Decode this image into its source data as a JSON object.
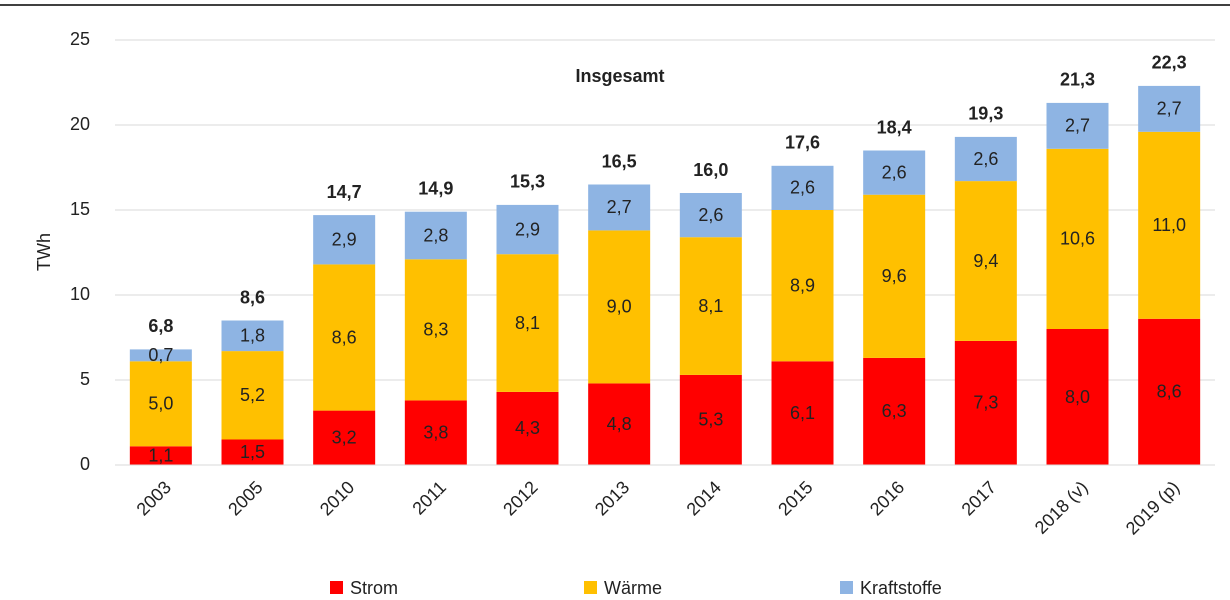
{
  "chart_data": {
    "type": "stacked_bar",
    "y_label": "TWh",
    "annotation": "Insgesamt",
    "categories": [
      "2003",
      "2005",
      "2010",
      "2011",
      "2012",
      "2013",
      "2014",
      "2015",
      "2016",
      "2017",
      "2018 (v)",
      "2019 (p)"
    ],
    "series": [
      {
        "name": "Strom",
        "color": "#ff0000",
        "values": [
          1.1,
          1.5,
          3.2,
          3.8,
          4.3,
          4.8,
          5.3,
          6.1,
          6.3,
          7.3,
          8.0,
          8.6
        ],
        "value_labels": [
          "1,1",
          "1,5",
          "3,2",
          "3,8",
          "4,3",
          "4,8",
          "5,3",
          "6,1",
          "6,3",
          "7,3",
          "8,0",
          "8,6"
        ]
      },
      {
        "name": "Wärme",
        "color": "#ffc000",
        "values": [
          5.0,
          5.2,
          8.6,
          8.3,
          8.1,
          9.0,
          8.1,
          8.9,
          9.6,
          9.4,
          10.6,
          11.0
        ],
        "value_labels": [
          "5,0",
          "5,2",
          "8,6",
          "8,3",
          "8,1",
          "9,0",
          "8,1",
          "8,9",
          "9,6",
          "9,4",
          "10,6",
          "11,0"
        ]
      },
      {
        "name": "Kraftstoffe",
        "color": "#8eb4e3",
        "values": [
          0.7,
          1.8,
          2.9,
          2.8,
          2.9,
          2.7,
          2.6,
          2.6,
          2.6,
          2.6,
          2.7,
          2.7
        ],
        "value_labels": [
          "0,7",
          "1,8",
          "2,9",
          "2,8",
          "2,9",
          "2,7",
          "2,6",
          "2,6",
          "2,6",
          "2,6",
          "2,7",
          "2,7"
        ]
      }
    ],
    "totals": {
      "values": [
        6.8,
        8.6,
        14.7,
        14.9,
        15.3,
        16.5,
        16.0,
        17.6,
        18.4,
        19.3,
        21.3,
        22.3
      ],
      "value_labels": [
        "6,8",
        "8,6",
        "14,7",
        "14,9",
        "15,3",
        "16,5",
        "16,0",
        "17,6",
        "18,4",
        "19,3",
        "21,3",
        "22,3"
      ]
    },
    "ylim": [
      0,
      25
    ],
    "yticks": [
      0,
      5,
      10,
      15,
      20,
      25
    ],
    "grid": true,
    "legend": "bottom"
  }
}
